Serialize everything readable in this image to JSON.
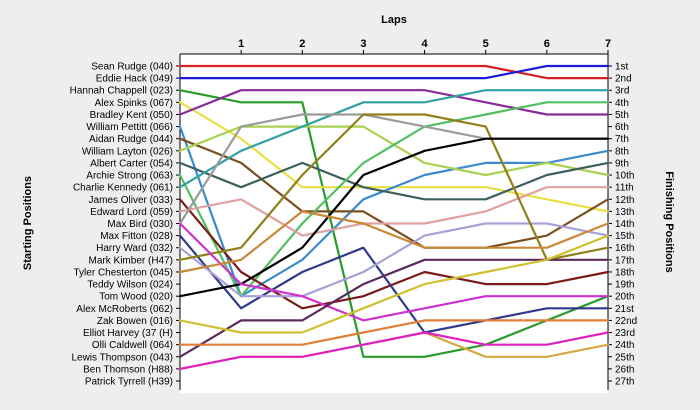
{
  "chart_data": {
    "type": "line",
    "title": "Laps",
    "ylabel_left": "Starting Positions",
    "ylabel_right": "Finishing Positions",
    "x": [
      0,
      1,
      2,
      3,
      4,
      5,
      6,
      7
    ],
    "x_tick_labels": [
      "1",
      "2",
      "3",
      "4",
      "5",
      "6",
      "7"
    ],
    "start_labels": [
      "Sean Rudge (040)",
      "Eddie Hack (049)",
      "Hannah Chappell (023)",
      "Alex Spinks (067)",
      "Bradley Kent (050)",
      "William Pettitt (066)",
      "Aidan Rudge (044)",
      "William Layton (026)",
      "Albert Carter (054)",
      "Archie Strong (063)",
      "Charlie Kennedy (061)",
      "James Oliver (033)",
      "Edward Lord (059)",
      "Max Bird (030)",
      "Max Fitton (028)",
      "Harry Ward (032)",
      "Mark Kimber (H47)",
      "Tyler Chesterton (045)",
      "Teddy Wilson (024)",
      "Tom Wood (020)",
      "Alex McRoberts (062)",
      "Zak Bowen (016)",
      "Elliot Harvey (37 (H)",
      "Olli Caldwell (064)",
      "Lewis Thompson (043)",
      "Ben Thomson (H88)",
      "Patrick Tyrrell (H39)"
    ],
    "finish_labels": [
      "1st",
      "2nd",
      "3rd",
      "4th",
      "5th",
      "6th",
      "7th",
      "8th",
      "9th",
      "10th",
      "11th",
      "12th",
      "13th",
      "14th",
      "15th",
      "16th",
      "17th",
      "18th",
      "19th",
      "20th",
      "21st",
      "22nd",
      "23rd",
      "24th",
      "25th",
      "26th",
      "27th"
    ],
    "ylim": [
      1,
      27
    ],
    "grid": false,
    "series": [
      {
        "name": "Sean Rudge (040)",
        "color": "#d42020",
        "values": [
          1,
          1,
          1,
          1,
          1,
          1,
          2,
          2
        ]
      },
      {
        "name": "Eddie Hack (049)",
        "color": "#1c1cd8",
        "values": [
          2,
          2,
          2,
          2,
          2,
          2,
          1,
          1
        ]
      },
      {
        "name": "Hannah Chappell (023)",
        "color": "#2a9a2a",
        "values": [
          3,
          4,
          4,
          25,
          25,
          24,
          22,
          20
        ]
      },
      {
        "name": "Alex Spinks (067)",
        "color": "#e8e040",
        "values": [
          4,
          7,
          11,
          11,
          11,
          11,
          12,
          13
        ]
      },
      {
        "name": "Bradley Kent (050)",
        "color": "#8a2a9a",
        "values": [
          5,
          3,
          3,
          3,
          3,
          4,
          5,
          5
        ]
      },
      {
        "name": "William Pettitt (066)",
        "color": "#3a8ad0",
        "values": [
          6,
          20,
          17,
          12,
          10,
          9,
          9,
          8
        ]
      },
      {
        "name": "Aidan Rudge (044)",
        "color": "#7a5020",
        "values": [
          7,
          9,
          13,
          13,
          16,
          16,
          15,
          12
        ]
      },
      {
        "name": "William Layton (026)",
        "color": "#aad050",
        "values": [
          8,
          6,
          6,
          6,
          9,
          10,
          9,
          10
        ]
      },
      {
        "name": "Albert Carter (054)",
        "color": "#3e5e5e",
        "values": [
          9,
          11,
          9,
          11,
          12,
          12,
          10,
          9
        ]
      },
      {
        "name": "Archie Strong (063)",
        "color": "#50c060",
        "values": [
          10,
          20,
          14,
          9,
          6,
          5,
          4,
          4
        ]
      },
      {
        "name": "Charlie Kennedy (061)",
        "color": "#30a0a0",
        "values": [
          11,
          8,
          6,
          4,
          4,
          3,
          3,
          3
        ]
      },
      {
        "name": "James Oliver (033)",
        "color": "#7a1a1a",
        "values": [
          12,
          18,
          21,
          20,
          18,
          19,
          19,
          18
        ]
      },
      {
        "name": "Edward Lord (059)",
        "color": "#e0a0a0",
        "values": [
          13,
          12,
          15,
          14,
          14,
          13,
          11,
          11
        ]
      },
      {
        "name": "Max Bird (030)",
        "color": "#9a9a9a",
        "values": [
          14,
          6,
          5,
          5,
          6,
          7,
          7,
          7
        ]
      },
      {
        "name": "Max Fitton (028)",
        "color": "#303a8a",
        "values": [
          15,
          21,
          18,
          16,
          23,
          22,
          21,
          21
        ]
      },
      {
        "name": "Harry Ward (032)",
        "color": "#a8a0d8",
        "values": [
          16,
          20,
          20,
          18,
          15,
          14,
          14,
          15
        ]
      },
      {
        "name": "Mark Kimber (H47)",
        "color": "#908018",
        "values": [
          17,
          16,
          10,
          5,
          5,
          6,
          17,
          16
        ]
      },
      {
        "name": "Tyler Chesterton (045)",
        "color": "#000000",
        "values": [
          20,
          19,
          16,
          10,
          8,
          7,
          7,
          7
        ]
      },
      {
        "name": "Teddy Wilson (024)",
        "color": "#d030d0",
        "values": [
          14,
          19,
          20,
          22,
          21,
          20,
          20,
          20
        ]
      },
      {
        "name": "Tom Wood (020)",
        "color": "#c88838",
        "values": [
          18,
          17,
          13,
          14,
          16,
          16,
          16,
          14
        ]
      },
      {
        "name": "Alex McRoberts (062)",
        "color": "#5a2a5a",
        "values": [
          25,
          22,
          22,
          19,
          17,
          17,
          17,
          17
        ]
      },
      {
        "name": "Zak Bowen (016)",
        "color": "#d0c030",
        "values": [
          22,
          23,
          23,
          21,
          19,
          18,
          17,
          15
        ]
      },
      {
        "name": "Elliot Harvey (37 (H)",
        "color": "#e08038",
        "values": [
          24,
          24,
          24,
          23,
          22,
          22,
          22,
          22
        ]
      },
      {
        "name": "Olli Caldwell (064)",
        "color": "#d8a840",
        "values": [
          26,
          25,
          25,
          24,
          23,
          25,
          25,
          24
        ]
      },
      {
        "name": "Lewis Thompson (043)",
        "color": "#e020c0",
        "values": [
          26,
          25,
          25,
          24,
          23,
          24,
          24,
          23
        ]
      }
    ]
  }
}
